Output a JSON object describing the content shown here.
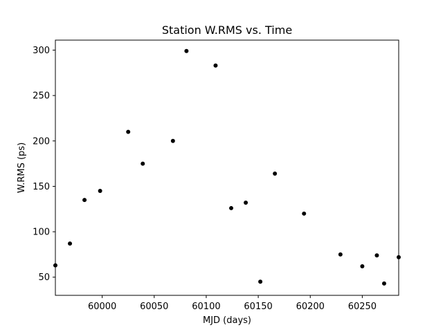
{
  "chart_data": {
    "type": "scatter",
    "title": "Station W.RMS vs. Time",
    "xlabel": "MJD (days)",
    "ylabel": "W.RMS (ps)",
    "xlim": [
      59955,
      60285
    ],
    "ylim": [
      30,
      311
    ],
    "xticks": [
      60000,
      60050,
      60100,
      60150,
      60200,
      60250
    ],
    "yticks": [
      50,
      100,
      150,
      200,
      250,
      300
    ],
    "grid": false,
    "marker_color": "#000000",
    "series": [
      {
        "x": [
          59955,
          59969,
          59983,
          59998,
          60025,
          60039,
          60068,
          60081,
          60109,
          60124,
          60138,
          60152,
          60166,
          60194,
          60229,
          60250,
          60264,
          60271,
          60285
        ],
        "y": [
          63,
          87,
          135,
          145,
          210,
          175,
          200,
          299,
          283,
          126,
          132,
          45,
          164,
          120,
          75,
          62,
          74,
          43,
          72
        ]
      }
    ]
  }
}
